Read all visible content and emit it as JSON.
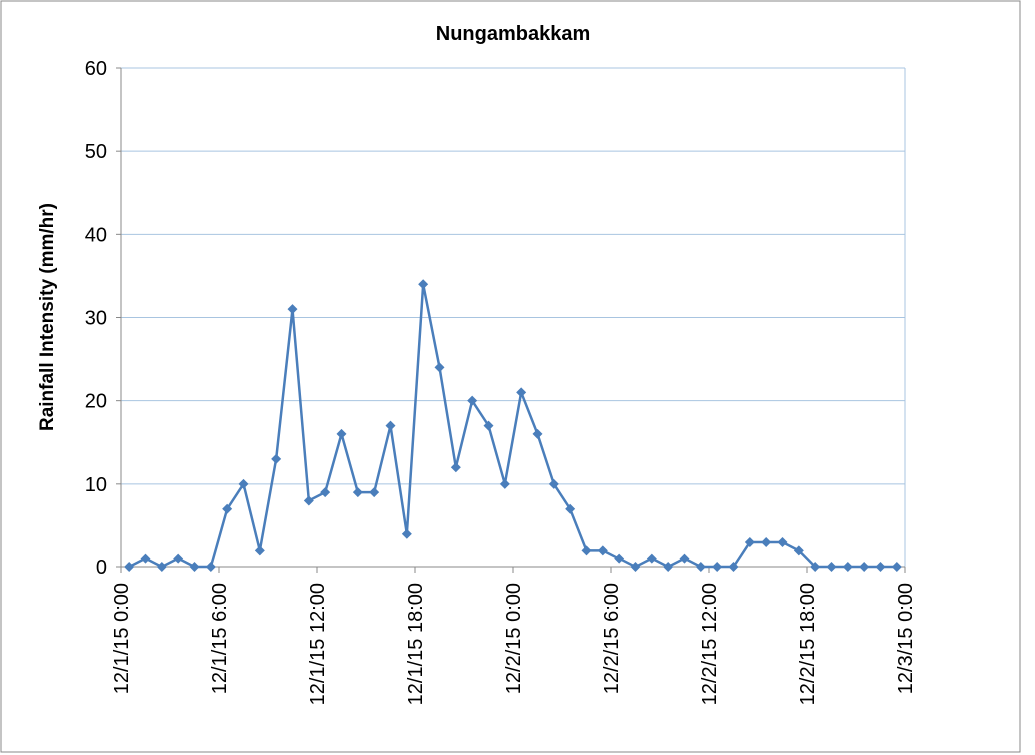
{
  "chart_data": {
    "type": "line",
    "title": "Nungambakkam",
    "y_label": "Rainfall Intensity (mm/hr)",
    "x": [
      0.5,
      1.5,
      2.5,
      3.5,
      4.5,
      5.5,
      6.5,
      7.5,
      8.5,
      9.5,
      10.5,
      11.5,
      12.5,
      13.5,
      14.5,
      15.5,
      16.5,
      17.5,
      18.5,
      19.5,
      20.5,
      21.5,
      22.5,
      23.5,
      24.5,
      25.5,
      26.5,
      27.5,
      28.5,
      29.5,
      30.5,
      31.5,
      32.5,
      33.5,
      34.5,
      35.5,
      36.5,
      37.5,
      38.5,
      39.5,
      40.5,
      41.5,
      42.5,
      43.5,
      44.5,
      45.5,
      46.5,
      47.5
    ],
    "series": [
      {
        "name": "Nungambakkam",
        "color": "#4a7ebb",
        "values": [
          0,
          1,
          0,
          1,
          0,
          0,
          7,
          10,
          2,
          13,
          31,
          8,
          9,
          16,
          9,
          9,
          17,
          4,
          34,
          24,
          12,
          20,
          17,
          10,
          21,
          16,
          10,
          7,
          2,
          2,
          1,
          0,
          1,
          0,
          1,
          0,
          0,
          0,
          3,
          3,
          3,
          2,
          0,
          0,
          0,
          0,
          0,
          0
        ]
      }
    ],
    "xlim": [
      0,
      48
    ],
    "xticks": [
      {
        "value": 0,
        "label": "12/1/15 0:00"
      },
      {
        "value": 6,
        "label": "12/1/15 6:00"
      },
      {
        "value": 12,
        "label": "12/1/15 12:00"
      },
      {
        "value": 18,
        "label": "12/1/15 18:00"
      },
      {
        "value": 24,
        "label": "12/2/15 0:00"
      },
      {
        "value": 30,
        "label": "12/2/15 6:00"
      },
      {
        "value": 36,
        "label": "12/2/15 12:00"
      },
      {
        "value": 42,
        "label": "12/2/15 18:00"
      },
      {
        "value": 48,
        "label": "12/3/15 0:00"
      }
    ],
    "ylim": [
      0,
      60
    ],
    "yticks": [
      0,
      10,
      20,
      30,
      40,
      50,
      60
    ],
    "grid": true
  }
}
